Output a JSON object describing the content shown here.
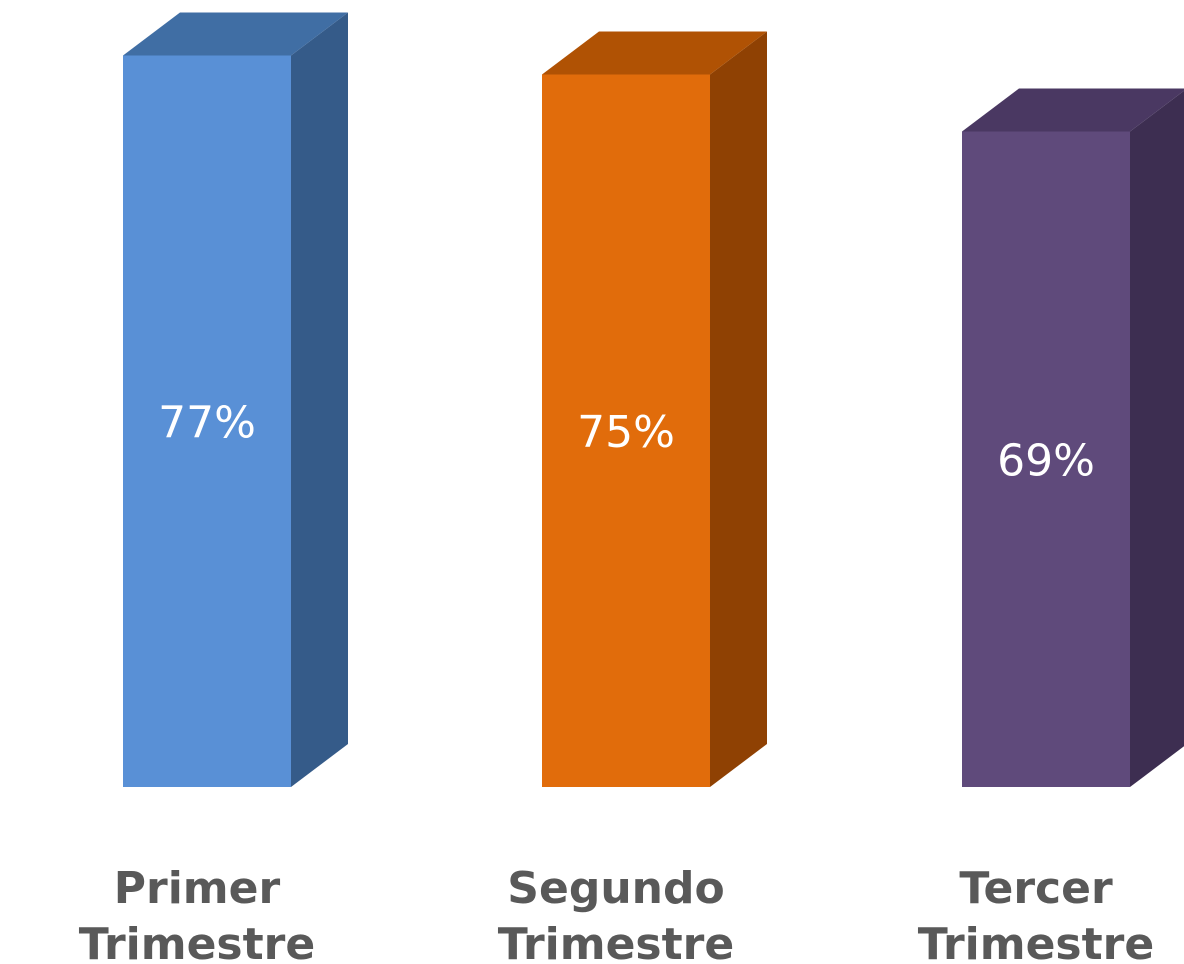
{
  "chart_data": {
    "type": "bar",
    "categories": [
      [
        "Primer",
        "Trimestre"
      ],
      [
        "Segundo",
        "Trimestre"
      ],
      [
        "Tercer",
        "Trimestre"
      ]
    ],
    "values": [
      77,
      75,
      69
    ],
    "data_labels": [
      "77%",
      "75%",
      "69%"
    ],
    "unit": "%",
    "three_d": true,
    "legend": "none",
    "grid": false,
    "colors": [
      {
        "front": "#5990d6",
        "side": "#355b89",
        "top": "#406ea4"
      },
      {
        "front": "#e16c0b",
        "side": "#8f4103",
        "top": "#b05204"
      },
      {
        "front": "#5f4a7b",
        "side": "#3d2e51",
        "top": "#4a3862"
      }
    ]
  }
}
